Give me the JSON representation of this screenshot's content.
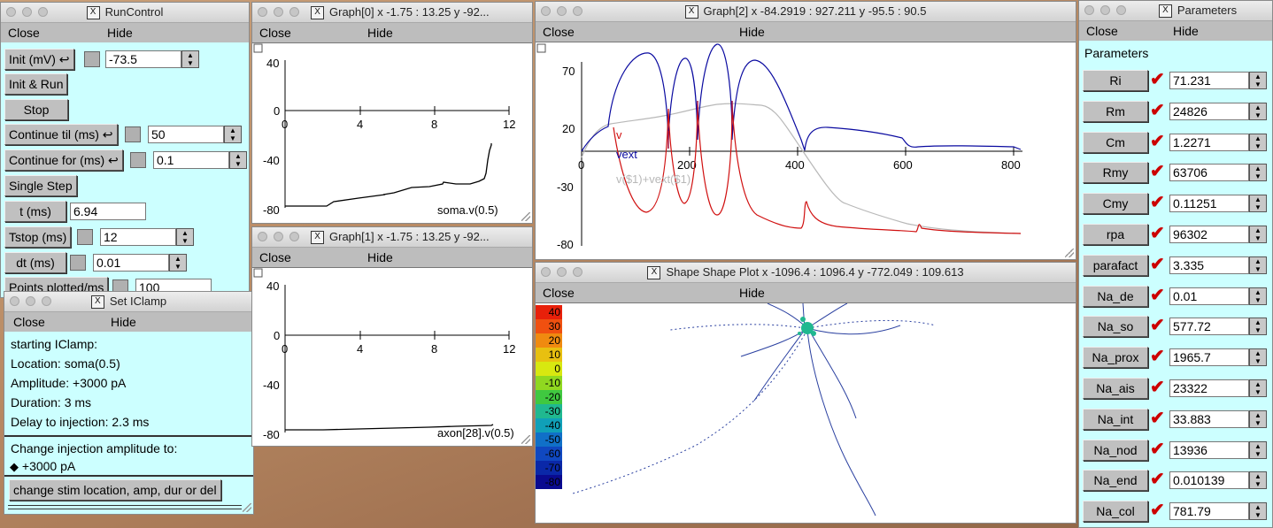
{
  "menus": {
    "close": "Close",
    "hide": "Hide"
  },
  "run_control": {
    "title": "RunControl",
    "init_label": "Init (mV)",
    "init_value": "-73.5",
    "init_run": "Init & Run",
    "stop": "Stop",
    "continue_til_label": "Continue til (ms)",
    "continue_til_value": "50",
    "continue_for_label": "Continue for (ms)",
    "continue_for_value": "0.1",
    "single_step": "Single Step",
    "t_label": "t (ms)",
    "t_value": "6.94",
    "tstop_label": "Tstop (ms)",
    "tstop_value": "12",
    "dt_label": "dt (ms)",
    "dt_value": "0.01",
    "points_label": "Points plotted/ms",
    "points_value": "100"
  },
  "iclamp": {
    "title": "Set IClamp",
    "lines": [
      "starting IClamp:",
      "Location: soma(0.5)",
      "Amplitude: +3000 pA",
      "Duration: 3 ms",
      "Delay to injection: 2.3 ms"
    ],
    "change_label": "Change injection amplitude to:",
    "option": "+3000 pA",
    "change_button": "change stim location, amp, dur or del"
  },
  "graph0": {
    "title": "Graph[0]  x -1.75 : 13.25  y -92...",
    "yticks": [
      "40",
      "0",
      "-40",
      "-80"
    ],
    "xticks": [
      "0",
      "4",
      "8",
      "12"
    ],
    "label": "soma.v(0.5)"
  },
  "graph1": {
    "title": "Graph[1]  x -1.75 : 13.25  y -92...",
    "yticks": [
      "40",
      "0",
      "-40",
      "-80"
    ],
    "xticks": [
      "0",
      "4",
      "8",
      "12"
    ],
    "label": "axon[28].v(0.5)"
  },
  "graph2": {
    "title": "Graph[2]  x -84.2919 : 927.211  y -95.5 : 90.5",
    "yticks": [
      "70",
      "20",
      "-30",
      "-80"
    ],
    "xticks": [
      "0",
      "200",
      "400",
      "600",
      "800"
    ],
    "legend": [
      "v",
      "vext",
      "v($1)+vext($1)"
    ],
    "colors": {
      "v": "#d01010",
      "vext": "#0a0aa0",
      "sum": "#b8b8b8"
    }
  },
  "shape": {
    "title": "Shape Shape Plot x -1096.4 : 1096.4  y -772.049 : 109.613",
    "scale": [
      "40",
      "30",
      "20",
      "10",
      "0",
      "-10",
      "-20",
      "-30",
      "-40",
      "-50",
      "-60",
      "-70",
      "-80"
    ],
    "scale_colors": [
      "#e8200a",
      "#f05010",
      "#f08a10",
      "#e8c010",
      "#d8e810",
      "#90d820",
      "#40c840",
      "#20b890",
      "#10a0b8",
      "#1070c8",
      "#1048c0",
      "#0a28a8",
      "#0a0a90"
    ]
  },
  "parameters": {
    "title": "Parameters",
    "header": "Parameters",
    "items": [
      {
        "name": "Ri",
        "value": "71.231"
      },
      {
        "name": "Rm",
        "value": "24826"
      },
      {
        "name": "Cm",
        "value": "1.2271"
      },
      {
        "name": "Rmy",
        "value": "63706"
      },
      {
        "name": "Cmy",
        "value": "0.11251"
      },
      {
        "name": "rpa",
        "value": "96302"
      },
      {
        "name": "parafact",
        "value": "3.335"
      },
      {
        "name": "Na_de",
        "value": "0.01"
      },
      {
        "name": "Na_so",
        "value": "577.72"
      },
      {
        "name": "Na_prox",
        "value": "1965.7"
      },
      {
        "name": "Na_ais",
        "value": "23322"
      },
      {
        "name": "Na_int",
        "value": "33.883"
      },
      {
        "name": "Na_nod",
        "value": "13936"
      },
      {
        "name": "Na_end",
        "value": "0.010139"
      },
      {
        "name": "Na_col",
        "value": "781.79"
      }
    ]
  }
}
